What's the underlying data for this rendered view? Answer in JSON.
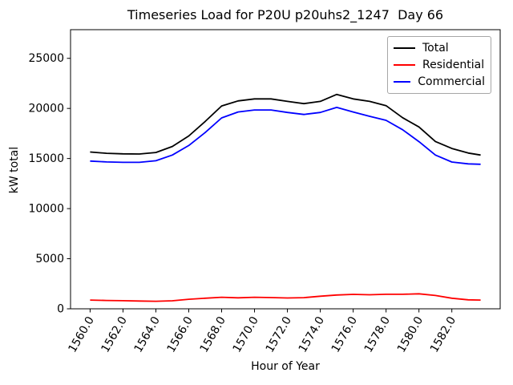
{
  "chart_data": {
    "type": "line",
    "title": "Timeseries Load for P20U p20uhs2_1247  Day 66",
    "xlabel": "Hour of Year",
    "ylabel": "kW total",
    "grid": false,
    "legend_position": "upper right",
    "xlim": [
      1558.81,
      1584.94
    ],
    "ylim": [
      0,
      27860
    ],
    "xticks": {
      "values": [
        1560,
        1562,
        1564,
        1566,
        1568,
        1570,
        1572,
        1574,
        1576,
        1578,
        1580,
        1582
      ],
      "labels": [
        "1560.0",
        "1562.0",
        "1564.0",
        "1566.0",
        "1568.0",
        "1570.0",
        "1572.0",
        "1574.0",
        "1576.0",
        "1578.0",
        "1580.0",
        "1582.0"
      ],
      "rotation_deg": 60
    },
    "yticks": {
      "values": [
        0,
        5000,
        10000,
        15000,
        20000,
        25000
      ],
      "labels": [
        "0",
        "5000",
        "10000",
        "15000",
        "20000",
        "25000"
      ]
    },
    "x": [
      1560,
      1561,
      1562,
      1563,
      1564,
      1565,
      1566,
      1567,
      1568,
      1569,
      1570,
      1571,
      1572,
      1573,
      1574,
      1575,
      1576,
      1577,
      1578,
      1579,
      1580,
      1581,
      1582,
      1583,
      1583.75
    ],
    "series": [
      {
        "name": "Total",
        "color": "#000000",
        "values": [
          15650,
          15520,
          15470,
          15450,
          15600,
          16200,
          17250,
          18700,
          20250,
          20750,
          20950,
          20950,
          20700,
          20480,
          20700,
          21400,
          20950,
          20700,
          20280,
          19080,
          18150,
          16700,
          16000,
          15550,
          15350
        ]
      },
      {
        "name": "Residential",
        "color": "#ff0000",
        "values": [
          870,
          830,
          810,
          780,
          750,
          800,
          950,
          1060,
          1150,
          1100,
          1150,
          1120,
          1080,
          1110,
          1260,
          1380,
          1440,
          1400,
          1450,
          1450,
          1500,
          1330,
          1060,
          900,
          870
        ]
      },
      {
        "name": "Commercial",
        "color": "#0000ff",
        "values": [
          14750,
          14660,
          14620,
          14620,
          14780,
          15350,
          16300,
          17600,
          19050,
          19650,
          19850,
          19850,
          19600,
          19400,
          19600,
          20100,
          19650,
          19210,
          18810,
          17880,
          16680,
          15350,
          14650,
          14470,
          14430
        ]
      }
    ]
  }
}
